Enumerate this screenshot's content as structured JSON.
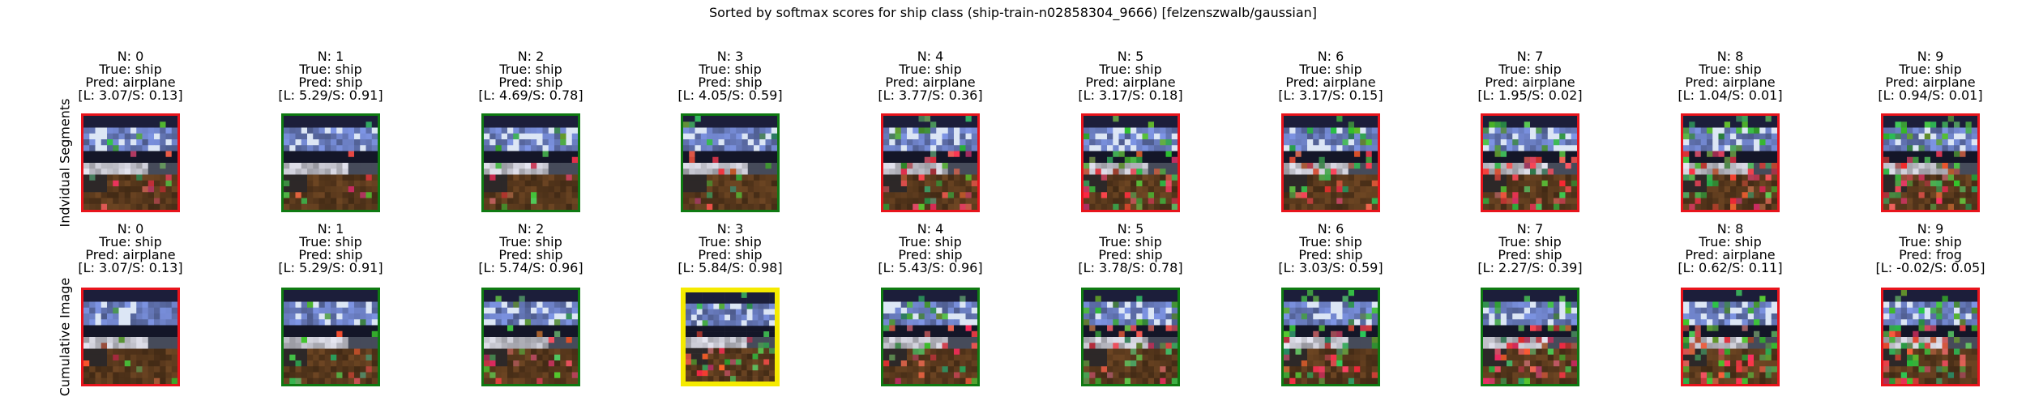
{
  "chart_data": {
    "type": "image-grid",
    "title": "Sorted by softmax scores for ship class (ship-train-n02858304_9666) [felzenszwalb/gaussian]",
    "rows": [
      {
        "label": "Indvidual Segments",
        "cells": [
          {
            "n": "N: 0",
            "true": "True: ship",
            "pred": "Pred: airplane",
            "scores": "[L: 3.07/S: 0.13]",
            "border": "red"
          },
          {
            "n": "N: 1",
            "true": "True: ship",
            "pred": "Pred: ship",
            "scores": "[L: 5.29/S: 0.91]",
            "border": "green"
          },
          {
            "n": "N: 2",
            "true": "True: ship",
            "pred": "Pred: ship",
            "scores": "[L: 4.69/S: 0.78]",
            "border": "green"
          },
          {
            "n": "N: 3",
            "true": "True: ship",
            "pred": "Pred: ship",
            "scores": "[L: 4.05/S: 0.59]",
            "border": "green"
          },
          {
            "n": "N: 4",
            "true": "True: ship",
            "pred": "Pred: airplane",
            "scores": "[L: 3.77/S: 0.36]",
            "border": "red"
          },
          {
            "n": "N: 5",
            "true": "True: ship",
            "pred": "Pred: airplane",
            "scores": "[L: 3.17/S: 0.18]",
            "border": "red"
          },
          {
            "n": "N: 6",
            "true": "True: ship",
            "pred": "Pred: airplane",
            "scores": "[L: 3.17/S: 0.15]",
            "border": "red"
          },
          {
            "n": "N: 7",
            "true": "True: ship",
            "pred": "Pred: airplane",
            "scores": "[L: 1.95/S: 0.02]",
            "border": "red"
          },
          {
            "n": "N: 8",
            "true": "True: ship",
            "pred": "Pred: airplane",
            "scores": "[L: 1.04/S: 0.01]",
            "border": "red"
          },
          {
            "n": "N: 9",
            "true": "True: ship",
            "pred": "Pred: airplane",
            "scores": "[L: 0.94/S: 0.01]",
            "border": "red"
          }
        ]
      },
      {
        "label": "Cumulative Image",
        "cells": [
          {
            "n": "N: 0",
            "true": "True: ship",
            "pred": "Pred: airplane",
            "scores": "[L: 3.07/S: 0.13]",
            "border": "red"
          },
          {
            "n": "N: 1",
            "true": "True: ship",
            "pred": "Pred: ship",
            "scores": "[L: 5.29/S: 0.91]",
            "border": "green"
          },
          {
            "n": "N: 2",
            "true": "True: ship",
            "pred": "Pred: ship",
            "scores": "[L: 5.74/S: 0.96]",
            "border": "green"
          },
          {
            "n": "N: 3",
            "true": "True: ship",
            "pred": "Pred: ship",
            "scores": "[L: 5.84/S: 0.98]",
            "border": "yellow"
          },
          {
            "n": "N: 4",
            "true": "True: ship",
            "pred": "Pred: ship",
            "scores": "[L: 5.43/S: 0.96]",
            "border": "green"
          },
          {
            "n": "N: 5",
            "true": "True: ship",
            "pred": "Pred: ship",
            "scores": "[L: 3.78/S: 0.78]",
            "border": "green"
          },
          {
            "n": "N: 6",
            "true": "True: ship",
            "pred": "Pred: ship",
            "scores": "[L: 3.03/S: 0.59]",
            "border": "green"
          },
          {
            "n": "N: 7",
            "true": "True: ship",
            "pred": "Pred: ship",
            "scores": "[L: 2.27/S: 0.39]",
            "border": "green"
          },
          {
            "n": "N: 8",
            "true": "True: ship",
            "pred": "Pred: airplane",
            "scores": "[L: 0.62/S: 0.11]",
            "border": "red"
          },
          {
            "n": "N: 9",
            "true": "True: ship",
            "pred": "Pred: frog",
            "scores": "[L: -0.02/S: 0.05]",
            "border": "red"
          }
        ]
      }
    ]
  },
  "colors": {
    "red": "#e8141c",
    "green": "#0f7a12",
    "yellow": "#f5ea00"
  }
}
